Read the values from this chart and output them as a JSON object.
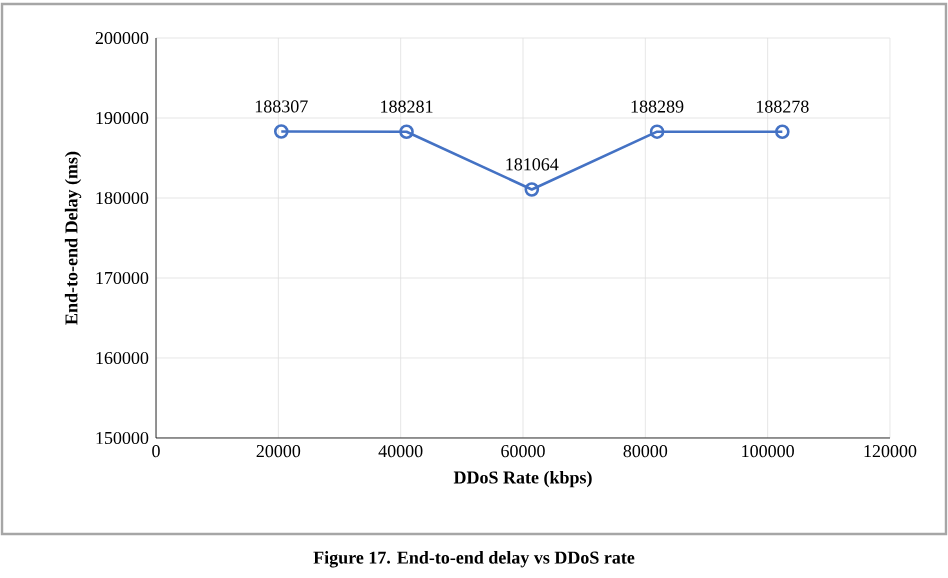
{
  "chart_data": {
    "type": "line",
    "xlabel": "DDoS Rate (kbps)",
    "ylabel": "End-to-end Delay (ms)",
    "x": [
      20480,
      40960,
      61440,
      81920,
      102400
    ],
    "series": [
      {
        "color": "#4472c4",
        "values": [
          188307,
          188281,
          181064,
          188289,
          188278
        ]
      }
    ],
    "xlim": [
      0,
      120000
    ],
    "xticks": [
      0,
      20000,
      40000,
      60000,
      80000,
      100000,
      120000
    ],
    "ylim": [
      150000,
      200000
    ],
    "yticks": [
      150000,
      160000,
      170000,
      180000,
      190000,
      200000
    ],
    "grid": true,
    "marker": "circle",
    "line_style": "solid",
    "data_labels": true,
    "annotations": [
      "Figure 17. End-to-end delay vs DDoS rate"
    ]
  }
}
